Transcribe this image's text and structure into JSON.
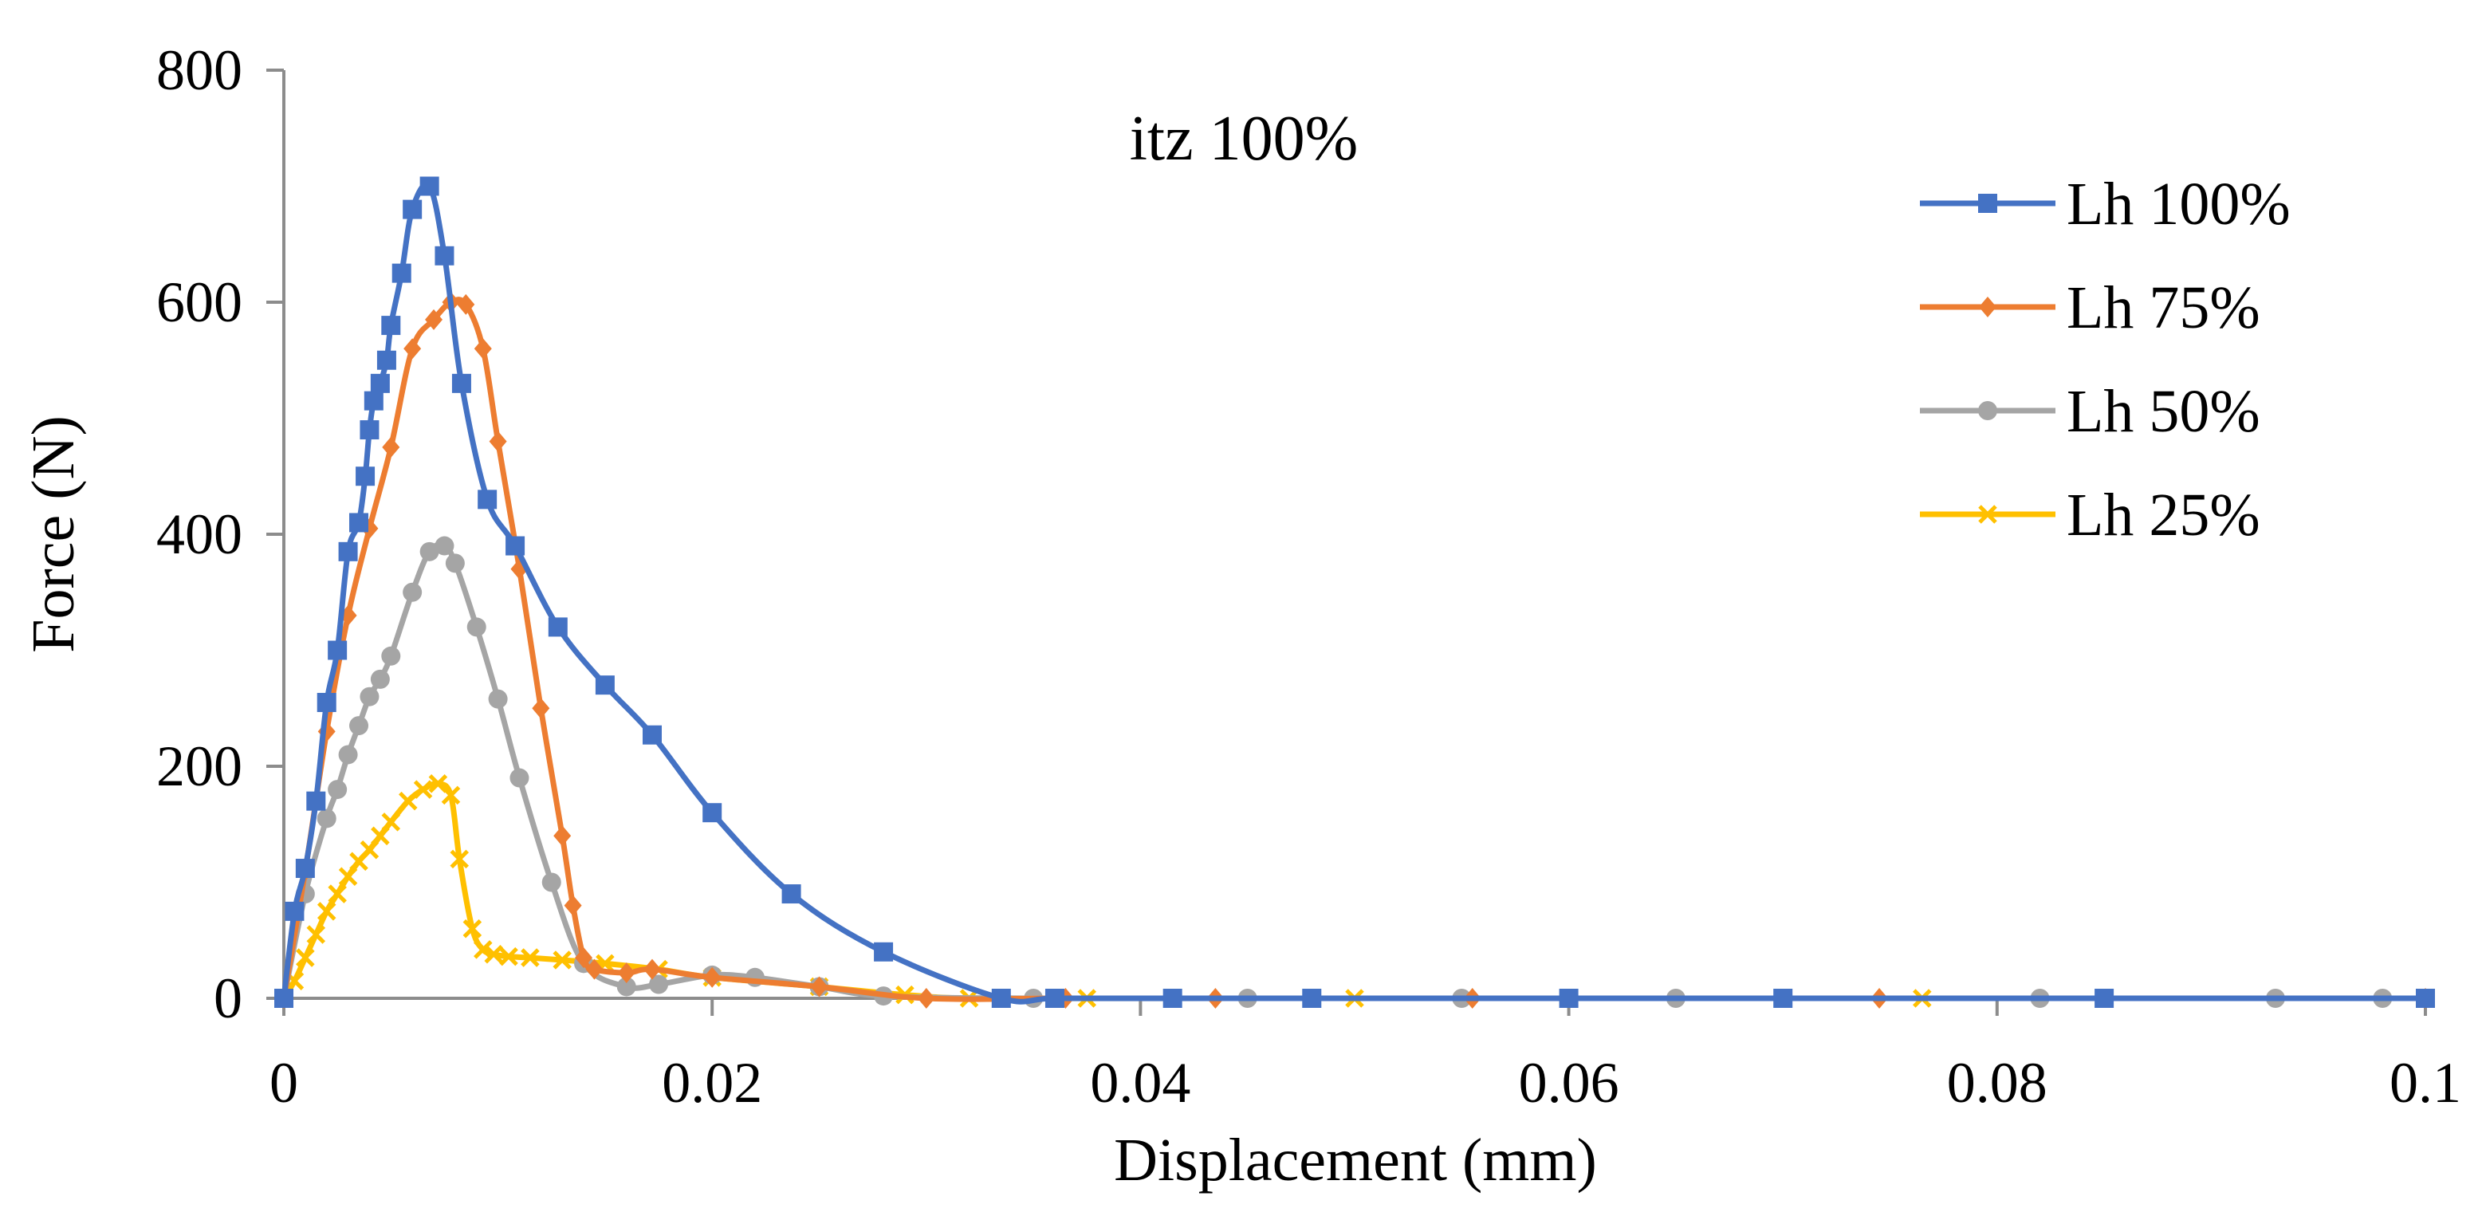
{
  "chart_data": {
    "type": "line",
    "title": "itz 100%",
    "xlabel": "Displacement (mm)",
    "ylabel": "Force (N)",
    "xlim": [
      0,
      0.1
    ],
    "ylim": [
      0,
      800
    ],
    "x_ticks": [
      "0",
      "0.02",
      "0.04",
      "0.06",
      "0.08",
      "0.1"
    ],
    "x_tick_values": [
      0,
      0.02,
      0.04,
      0.06,
      0.08,
      0.1
    ],
    "y_ticks": [
      "0",
      "200",
      "400",
      "600",
      "800"
    ],
    "y_tick_values": [
      0,
      200,
      400,
      600,
      800
    ],
    "grid": false,
    "legend_position": "top-right",
    "series": [
      {
        "name": "Lh 100%",
        "color": "#4472C4",
        "marker": "square",
        "x": [
          0,
          0.0005,
          0.001,
          0.0015,
          0.002,
          0.0025,
          0.003,
          0.0035,
          0.0038,
          0.004,
          0.0042,
          0.0045,
          0.0048,
          0.005,
          0.0055,
          0.006,
          0.0068,
          0.0075,
          0.0083,
          0.0095,
          0.0108,
          0.0128,
          0.015,
          0.0172,
          0.02,
          0.0237,
          0.028,
          0.0335,
          0.036,
          0.0415,
          0.048,
          0.06,
          0.07,
          0.085,
          0.1
        ],
        "y": [
          0,
          75,
          112,
          170,
          255,
          300,
          385,
          410,
          450,
          490,
          515,
          530,
          550,
          580,
          625,
          680,
          700,
          640,
          530,
          430,
          390,
          320,
          270,
          227,
          160,
          90,
          40,
          0,
          0,
          0,
          0,
          0,
          0,
          0,
          0
        ]
      },
      {
        "name": "Lh 75%",
        "color": "#ED7D31",
        "marker": "diamond",
        "x": [
          0,
          0.001,
          0.002,
          0.003,
          0.004,
          0.005,
          0.006,
          0.007,
          0.0078,
          0.0085,
          0.0093,
          0.01,
          0.011,
          0.012,
          0.013,
          0.0135,
          0.014,
          0.0145,
          0.016,
          0.0172,
          0.02,
          0.025,
          0.03,
          0.0365,
          0.0435,
          0.0555,
          0.0745,
          0.1
        ],
        "y": [
          0,
          110,
          230,
          330,
          405,
          475,
          560,
          585,
          600,
          598,
          560,
          480,
          370,
          250,
          140,
          80,
          35,
          25,
          22,
          25,
          18,
          10,
          0,
          0,
          0,
          0,
          0,
          0
        ]
      },
      {
        "name": "Lh 50%",
        "color": "#A5A5A5",
        "marker": "circle",
        "x": [
          0,
          0.001,
          0.002,
          0.0025,
          0.003,
          0.0035,
          0.004,
          0.0045,
          0.005,
          0.006,
          0.0068,
          0.0075,
          0.008,
          0.009,
          0.01,
          0.011,
          0.0125,
          0.014,
          0.016,
          0.0175,
          0.02,
          0.022,
          0.025,
          0.028,
          0.035,
          0.045,
          0.055,
          0.06,
          0.065,
          0.082,
          0.093,
          0.098,
          0.1
        ],
        "y": [
          0,
          90,
          155,
          180,
          210,
          235,
          260,
          275,
          295,
          350,
          385,
          390,
          375,
          320,
          258,
          190,
          100,
          30,
          10,
          12,
          20,
          18,
          10,
          2,
          0,
          0,
          0,
          0,
          0,
          0,
          0,
          0,
          0
        ]
      },
      {
        "name": "Lh 25%",
        "color": "#FFC000",
        "marker": "x",
        "x": [
          0,
          0.0005,
          0.001,
          0.0015,
          0.002,
          0.0025,
          0.003,
          0.0035,
          0.004,
          0.0045,
          0.005,
          0.0058,
          0.0065,
          0.0072,
          0.0078,
          0.0082,
          0.0088,
          0.0093,
          0.0098,
          0.0105,
          0.0115,
          0.013,
          0.015,
          0.0175,
          0.02,
          0.025,
          0.029,
          0.032,
          0.0375,
          0.05,
          0.0765,
          0.1
        ],
        "y": [
          0,
          15,
          35,
          55,
          75,
          90,
          105,
          118,
          128,
          140,
          152,
          170,
          180,
          185,
          175,
          120,
          60,
          42,
          38,
          36,
          35,
          33,
          30,
          25,
          18,
          10,
          3,
          0,
          0,
          0,
          0,
          0
        ]
      }
    ]
  }
}
